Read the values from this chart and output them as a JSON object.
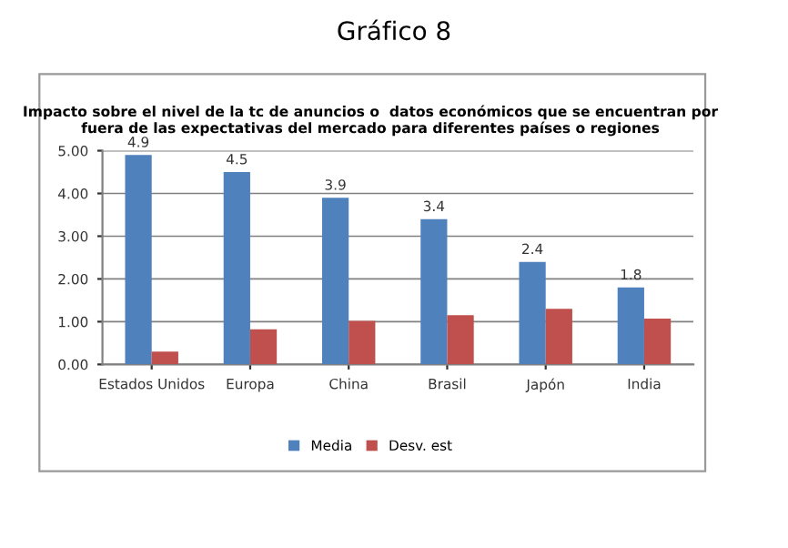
{
  "chart_data": {
    "type": "bar",
    "title": "Gráfico 8",
    "subtitle": "Impacto sobre el nivel de la tc de anuncios o  datos económicos que se encuentran por fuera de las expectativas del mercado para diferentes países o regiones",
    "categories": [
      "Estados Unidos",
      "Europa",
      "China",
      "Brasil",
      "Japón",
      "India"
    ],
    "series": [
      {
        "name": "Media",
        "color": "#4f81bd",
        "values": [
          4.9,
          4.5,
          3.9,
          3.4,
          2.4,
          1.8
        ],
        "value_labels": [
          "4.9",
          "4.5",
          "3.9",
          "3.4",
          "2.4",
          "1.8"
        ]
      },
      {
        "name": "Desv. est",
        "color": "#c0504d",
        "values": [
          0.3,
          0.82,
          1.02,
          1.15,
          1.3,
          1.07
        ]
      }
    ],
    "ylim": [
      0,
      5
    ],
    "yticks": [
      {
        "value": 0,
        "label": "0.00"
      },
      {
        "value": 1,
        "label": "1.00"
      },
      {
        "value": 2,
        "label": "2.00"
      },
      {
        "value": 3,
        "label": "3.00"
      },
      {
        "value": 4,
        "label": "4.00"
      },
      {
        "value": 5,
        "label": "5.00"
      }
    ],
    "grid": "y",
    "legend": "bottom"
  }
}
